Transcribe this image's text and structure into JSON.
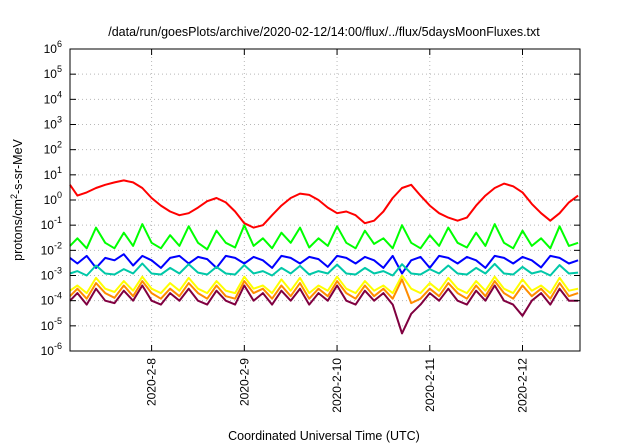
{
  "chart_data": {
    "type": "line",
    "title": "/data/run/goesPlots/archive/2020-02-12/14:00/flux/../flux/5daysMoonFluxes.txt",
    "xlabel": "Coordinated Universal Time (UTC)",
    "ylabel": {
      "base": "protons/cm",
      "exp": "2",
      "rest": "-s-sr-MeV"
    },
    "yscale": "log",
    "ylim": [
      1e-06,
      1000000.0
    ],
    "xlim": [
      7.12,
      12.62
    ],
    "x_unit": "day of February 2020",
    "grid": true,
    "legend": "none",
    "y_ticks": [
      {
        "value": 1e-06,
        "base": "10",
        "exp": "-6"
      },
      {
        "value": 1e-05,
        "base": "10",
        "exp": "-5"
      },
      {
        "value": 0.0001,
        "base": "10",
        "exp": "-4"
      },
      {
        "value": 0.001,
        "base": "10",
        "exp": "-3"
      },
      {
        "value": 0.01,
        "base": "10",
        "exp": "-2"
      },
      {
        "value": 0.1,
        "base": "10",
        "exp": "-1"
      },
      {
        "value": 1,
        "base": "10",
        "exp": "0"
      },
      {
        "value": 10,
        "base": "10",
        "exp": "1"
      },
      {
        "value": 100,
        "base": "10",
        "exp": "2"
      },
      {
        "value": 1000,
        "base": "10",
        "exp": "3"
      },
      {
        "value": 10000,
        "base": "10",
        "exp": "4"
      },
      {
        "value": 100000,
        "base": "10",
        "exp": "5"
      },
      {
        "value": 1000000,
        "base": "10",
        "exp": "6"
      }
    ],
    "x_ticks": [
      {
        "value": 8,
        "label": "2020-2-8"
      },
      {
        "value": 9,
        "label": "2020-2-9"
      },
      {
        "value": 10,
        "label": "2020-2-10"
      },
      {
        "value": 11,
        "label": "2020-2-11"
      },
      {
        "value": 12,
        "label": "2020-2-12"
      }
    ],
    "x": [
      7.1,
      7.2,
      7.3,
      7.4,
      7.5,
      7.6,
      7.7,
      7.8,
      7.9,
      8.0,
      8.1,
      8.2,
      8.3,
      8.4,
      8.5,
      8.6,
      8.7,
      8.8,
      8.9,
      9.0,
      9.1,
      9.2,
      9.3,
      9.4,
      9.5,
      9.6,
      9.7,
      9.8,
      9.9,
      10.0,
      10.1,
      10.2,
      10.3,
      10.4,
      10.5,
      10.6,
      10.7,
      10.8,
      10.9,
      11.0,
      11.1,
      11.2,
      11.3,
      11.4,
      11.5,
      11.6,
      11.7,
      11.8,
      11.9,
      12.0,
      12.1,
      12.2,
      12.3,
      12.4,
      12.5,
      12.6
    ],
    "series": [
      {
        "color": "#ff0000",
        "values": [
          4,
          1.5,
          2,
          3,
          4,
          5,
          6,
          5,
          3,
          1.2,
          0.6,
          0.35,
          0.25,
          0.3,
          0.5,
          0.9,
          1.2,
          0.8,
          0.35,
          0.12,
          0.08,
          0.1,
          0.25,
          0.6,
          1.2,
          1.8,
          1.6,
          1.0,
          0.5,
          0.3,
          0.35,
          0.25,
          0.12,
          0.15,
          0.35,
          1.2,
          3,
          4,
          1.5,
          0.6,
          0.3,
          0.2,
          0.15,
          0.2,
          0.6,
          1.5,
          3,
          4.5,
          3.5,
          2,
          0.7,
          0.3,
          0.15,
          0.3,
          0.8,
          1.5
        ]
      },
      {
        "color": "#00ff00",
        "values": [
          0.015,
          0.03,
          0.012,
          0.08,
          0.02,
          0.012,
          0.05,
          0.015,
          0.11,
          0.02,
          0.012,
          0.04,
          0.015,
          0.09,
          0.02,
          0.011,
          0.06,
          0.02,
          0.013,
          0.1,
          0.015,
          0.03,
          0.012,
          0.05,
          0.02,
          0.08,
          0.013,
          0.03,
          0.015,
          0.09,
          0.02,
          0.012,
          0.06,
          0.018,
          0.03,
          0.012,
          0.1,
          0.02,
          0.012,
          0.04,
          0.015,
          0.08,
          0.02,
          0.013,
          0.05,
          0.015,
          0.11,
          0.02,
          0.012,
          0.06,
          0.015,
          0.03,
          0.012,
          0.09,
          0.015,
          0.02
        ]
      },
      {
        "color": "#0000ff",
        "values": [
          0.005,
          0.003,
          0.006,
          0.002,
          0.005,
          0.004,
          0.007,
          0.0025,
          0.006,
          0.004,
          0.002,
          0.005,
          0.006,
          0.003,
          0.0055,
          0.0045,
          0.002,
          0.006,
          0.005,
          0.003,
          0.0055,
          0.004,
          0.002,
          0.006,
          0.005,
          0.003,
          0.0055,
          0.0045,
          0.0022,
          0.006,
          0.005,
          0.003,
          0.0055,
          0.004,
          0.002,
          0.006,
          0.0012,
          0.004,
          0.0055,
          0.002,
          0.006,
          0.005,
          0.003,
          0.0055,
          0.004,
          0.002,
          0.006,
          0.005,
          0.003,
          0.0055,
          0.004,
          0.0021,
          0.006,
          0.005,
          0.003,
          0.004
        ]
      },
      {
        "color": "#00c8a8",
        "values": [
          0.0012,
          0.0015,
          0.001,
          0.0025,
          0.0012,
          0.0011,
          0.0018,
          0.0012,
          0.003,
          0.0012,
          0.0011,
          0.002,
          0.0012,
          0.0028,
          0.0013,
          0.0011,
          0.0022,
          0.0012,
          0.0011,
          0.0026,
          0.0012,
          0.0015,
          0.001,
          0.002,
          0.0012,
          0.0024,
          0.0011,
          0.0015,
          0.0012,
          0.0027,
          0.0012,
          0.0011,
          0.002,
          0.0012,
          0.0015,
          0.001,
          0.0028,
          0.0012,
          0.0011,
          0.0018,
          0.0012,
          0.0025,
          0.0012,
          0.0011,
          0.002,
          0.0012,
          0.0029,
          0.0012,
          0.0011,
          0.0022,
          0.0012,
          0.0015,
          0.001,
          0.0026,
          0.0012,
          0.0013
        ]
      },
      {
        "color": "#ffff00",
        "values": [
          0.00025,
          0.0004,
          0.0002,
          0.0008,
          0.0003,
          0.00022,
          0.0006,
          0.00025,
          0.0009,
          0.0003,
          0.0002,
          0.0005,
          0.00025,
          0.0008,
          0.0003,
          0.0002,
          0.0006,
          0.00025,
          0.0002,
          0.0009,
          0.0003,
          0.0004,
          0.0002,
          0.0007,
          0.00025,
          0.0008,
          0.0002,
          0.0004,
          0.00025,
          0.0009,
          0.0003,
          0.0002,
          0.0006,
          0.00025,
          0.0004,
          0.0002,
          0.001,
          0.0003,
          0.0002,
          0.0005,
          0.00025,
          0.0008,
          0.0003,
          0.0002,
          0.0006,
          0.00025,
          0.0009,
          0.0003,
          0.0002,
          0.0007,
          0.00025,
          0.0004,
          0.0002,
          0.0008,
          0.00025,
          0.0003
        ]
      },
      {
        "color": "#ff8c00",
        "values": [
          0.00015,
          0.0003,
          0.00012,
          0.0005,
          0.0002,
          0.00013,
          0.0004,
          0.00015,
          0.0006,
          0.0002,
          0.00012,
          0.0003,
          0.00015,
          0.0005,
          0.0002,
          0.00012,
          0.0004,
          0.00015,
          0.00012,
          0.0006,
          0.0002,
          0.0003,
          0.00012,
          0.0004,
          0.00015,
          0.0005,
          0.00012,
          0.0003,
          0.00015,
          0.0006,
          0.0002,
          0.00012,
          0.0004,
          0.00015,
          0.0003,
          0.00012,
          0.0007,
          8e-05,
          0.00012,
          0.0003,
          0.00015,
          0.0005,
          0.0002,
          0.00012,
          0.0004,
          0.00015,
          0.0006,
          0.0002,
          0.00012,
          0.0004,
          0.00015,
          0.0003,
          0.00012,
          0.0005,
          0.00015,
          0.0002
        ]
      },
      {
        "color": "#800040",
        "values": [
          0.0001,
          0.0002,
          7e-05,
          0.0003,
          0.0001,
          8e-05,
          0.00025,
          0.0001,
          0.0004,
          0.0001,
          7e-05,
          0.0002,
          0.0001,
          0.0003,
          0.0001,
          7e-05,
          0.00025,
          0.0001,
          7e-05,
          0.0004,
          0.0001,
          0.0002,
          7e-05,
          0.00025,
          0.0001,
          0.0003,
          7e-05,
          0.0002,
          0.0001,
          0.0004,
          0.0001,
          7e-05,
          0.00025,
          0.0001,
          0.0002,
          7e-05,
          5e-06,
          3e-05,
          7e-05,
          0.0002,
          0.0001,
          0.0003,
          0.0001,
          7e-05,
          0.00025,
          0.0001,
          0.0004,
          0.0001,
          7e-05,
          2.5e-05,
          0.0001,
          0.0002,
          7e-05,
          0.0003,
          0.0001,
          0.0001
        ]
      }
    ]
  }
}
